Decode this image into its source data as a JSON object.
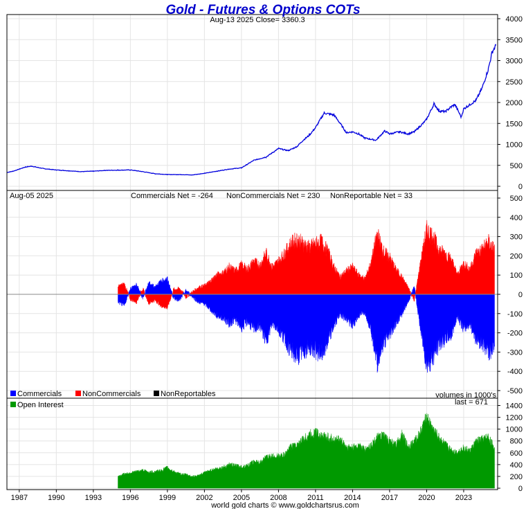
{
  "title": "Gold - Futures & Options COTs",
  "footer": "world gold charts © www.goldchartsrus.com",
  "colors": {
    "price": "#0000dd",
    "commercials": "#0000ff",
    "noncommercials": "#ff0000",
    "nonreportables": "#000000",
    "open_interest": "#009900"
  },
  "chart_data": [
    {
      "type": "line",
      "panel": "price",
      "subtitle": "Aug-13  2025   Close= 3360.3",
      "ylim": [
        0,
        4000
      ],
      "yticks": [
        "0",
        "500",
        "1000",
        "1500",
        "2000",
        "2500",
        "3000",
        "3500",
        "4000"
      ],
      "series": [
        {
          "x": [
            1986.0,
            1986.5,
            1987.5,
            1988.0,
            1989.0,
            1990.0,
            1991.0,
            1992.0,
            1993.0,
            1994.0,
            1995.0,
            1996.0,
            1997.0,
            1998.0,
            1999.0,
            2000.0,
            2001.0,
            2002.0,
            2003.0,
            2004.0,
            2005.0,
            2006.0,
            2007.0,
            2008.0,
            2008.8,
            2009.5,
            2010.0,
            2010.5,
            2011.0,
            2011.7,
            2012.5,
            2013.0,
            2013.5,
            2014.0,
            2014.5,
            2015.0,
            2015.9,
            2016.6,
            2017.0,
            2017.8,
            2018.5,
            2019.0,
            2019.7,
            2020.0,
            2020.6,
            2021.0,
            2021.5,
            2022.0,
            2022.3,
            2022.8,
            2023.0,
            2023.5,
            2024.0,
            2024.5,
            2025.0,
            2025.3,
            2025.6
          ],
          "values": [
            330,
            360,
            460,
            480,
            420,
            390,
            370,
            350,
            360,
            380,
            385,
            390,
            350,
            300,
            280,
            280,
            270,
            310,
            360,
            410,
            440,
            620,
            700,
            900,
            850,
            950,
            1100,
            1220,
            1400,
            1750,
            1700,
            1500,
            1280,
            1300,
            1250,
            1150,
            1100,
            1320,
            1250,
            1300,
            1250,
            1300,
            1500,
            1600,
            1970,
            1800,
            1780,
            1900,
            1950,
            1650,
            1850,
            1950,
            2050,
            2350,
            2800,
            3200,
            3360
          ]
        }
      ]
    },
    {
      "type": "area",
      "panel": "cot_net",
      "subtitle_date": "Aug-05  2025",
      "labels": {
        "commercials": "Commercials Net = -264",
        "noncommercials": "NonCommercials Net = 230",
        "nonreportables": "NonReportable Net = 33"
      },
      "ylim": [
        -500,
        500
      ],
      "yticks": [
        "-500",
        "-400",
        "-300",
        "-200",
        "-100",
        "0",
        "100",
        "200",
        "300",
        "400",
        "500"
      ],
      "legend": [
        "Commercials",
        "NonCommercials",
        "NonReportables"
      ],
      "legend_position": "bottom-left",
      "x": [
        1995.0,
        1995.5,
        1996.0,
        1996.5,
        1997.0,
        1997.5,
        1998.0,
        1998.5,
        1999.0,
        1999.5,
        2000.0,
        2000.5,
        2001.0,
        2001.5,
        2002.0,
        2002.5,
        2003.0,
        2003.5,
        2004.0,
        2004.5,
        2005.0,
        2005.5,
        2006.0,
        2006.5,
        2007.0,
        2007.5,
        2008.0,
        2008.5,
        2009.0,
        2009.5,
        2010.0,
        2010.5,
        2011.0,
        2011.5,
        2012.0,
        2012.5,
        2013.0,
        2013.5,
        2014.0,
        2014.5,
        2015.0,
        2015.5,
        2016.0,
        2016.5,
        2017.0,
        2017.5,
        2018.0,
        2018.5,
        2019.0,
        2019.5,
        2020.0,
        2020.5,
        2021.0,
        2021.5,
        2022.0,
        2022.5,
        2023.0,
        2023.5,
        2024.0,
        2024.5,
        2025.0,
        2025.5
      ],
      "series": [
        {
          "name": "Commercials",
          "values": [
            -40,
            -60,
            30,
            50,
            -20,
            60,
            40,
            70,
            80,
            -20,
            -30,
            20,
            -10,
            -40,
            -50,
            -80,
            -110,
            -120,
            -150,
            -130,
            -170,
            -140,
            -180,
            -160,
            -240,
            -150,
            -180,
            -230,
            -290,
            -320,
            -300,
            -270,
            -290,
            -310,
            -250,
            -160,
            -100,
            -130,
            -160,
            -110,
            -90,
            -180,
            -350,
            -250,
            -210,
            -150,
            -100,
            -40,
            40,
            -180,
            -360,
            -330,
            -260,
            -230,
            -210,
            -110,
            -180,
            -150,
            -230,
            -250,
            -300,
            -264
          ]
        },
        {
          "name": "NonCommercials",
          "values": [
            40,
            55,
            -25,
            -40,
            30,
            -45,
            -30,
            -60,
            -70,
            25,
            30,
            -15,
            10,
            35,
            45,
            70,
            100,
            110,
            140,
            120,
            150,
            130,
            170,
            150,
            210,
            140,
            170,
            210,
            260,
            280,
            260,
            240,
            260,
            270,
            220,
            140,
            90,
            120,
            140,
            100,
            80,
            160,
            310,
            220,
            190,
            130,
            90,
            35,
            -30,
            160,
            330,
            300,
            230,
            210,
            180,
            100,
            160,
            130,
            210,
            230,
            270,
            230
          ]
        }
      ]
    },
    {
      "type": "area",
      "panel": "open_interest",
      "note": "volumes in 1000's",
      "last": "last = 671",
      "legend": [
        "Open Interest"
      ],
      "legend_position": "top-left",
      "ylim": [
        0,
        1500
      ],
      "yticks": [
        "0",
        "200",
        "400",
        "600",
        "800",
        "1000",
        "1200",
        "1400"
      ],
      "x": [
        1995.0,
        1995.5,
        1996.0,
        1996.5,
        1997.0,
        1997.5,
        1998.0,
        1998.5,
        1999.0,
        1999.5,
        2000.0,
        2000.5,
        2001.0,
        2001.5,
        2002.0,
        2002.5,
        2003.0,
        2003.5,
        2004.0,
        2004.5,
        2005.0,
        2005.5,
        2006.0,
        2006.5,
        2007.0,
        2007.5,
        2008.0,
        2008.5,
        2009.0,
        2009.5,
        2010.0,
        2010.5,
        2011.0,
        2011.5,
        2012.0,
        2012.5,
        2013.0,
        2013.5,
        2014.0,
        2014.5,
        2015.0,
        2015.5,
        2016.0,
        2016.5,
        2017.0,
        2017.5,
        2018.0,
        2018.5,
        2019.0,
        2019.5,
        2020.0,
        2020.5,
        2021.0,
        2021.5,
        2022.0,
        2022.5,
        2023.0,
        2023.5,
        2024.0,
        2024.5,
        2025.0,
        2025.5
      ],
      "values": [
        200,
        240,
        260,
        280,
        300,
        270,
        280,
        300,
        350,
        280,
        240,
        230,
        200,
        210,
        260,
        300,
        330,
        350,
        400,
        380,
        360,
        380,
        450,
        430,
        520,
        540,
        540,
        560,
        700,
        720,
        820,
        900,
        940,
        880,
        860,
        820,
        820,
        700,
        680,
        720,
        650,
        720,
        850,
        880,
        800,
        720,
        900,
        700,
        780,
        950,
        1200,
        1000,
        850,
        740,
        640,
        600,
        680,
        620,
        780,
        820,
        860,
        671
      ]
    }
  ],
  "x_axis": {
    "range": [
      1986.0,
      2025.75
    ],
    "ticks": [
      "1987",
      "1990",
      "1993",
      "1996",
      "1999",
      "2002",
      "2005",
      "2008",
      "2011",
      "2014",
      "2017",
      "2020",
      "2023"
    ]
  }
}
